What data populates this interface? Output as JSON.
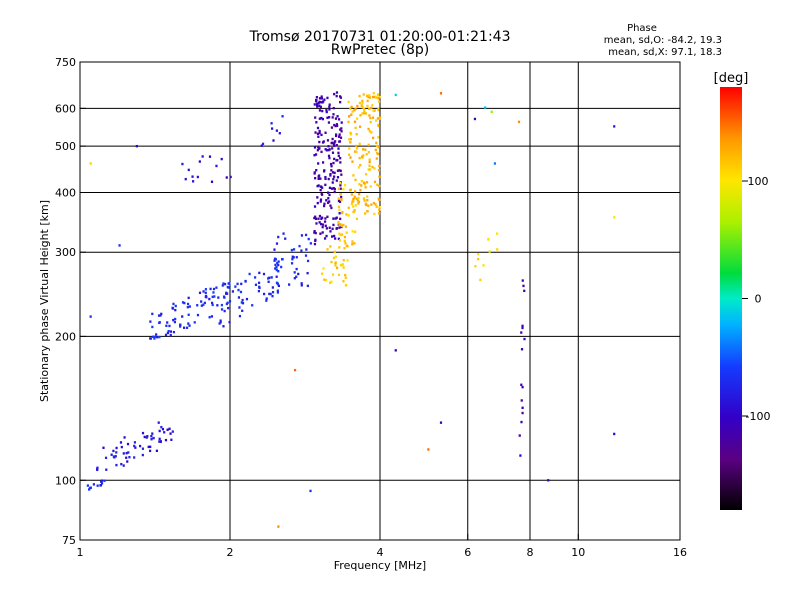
{
  "chart_data": {
    "type": "scatter",
    "title": "Tromsø 20170731 01:20:00-01:21:43",
    "subtitle": "RwPretec (8p)",
    "xlabel": "Frequency [MHz]",
    "ylabel": "Stationary phase Virtual Height [km]",
    "x_scale": "log",
    "y_scale": "log",
    "xlim": [
      1,
      16
    ],
    "ylim": [
      75,
      750
    ],
    "x_ticks": [
      1,
      2,
      4,
      6,
      8,
      10,
      16
    ],
    "x_tick_labels": [
      "1",
      "2",
      "4",
      "6",
      "8",
      "10",
      "16"
    ],
    "y_ticks": [
      75,
      100,
      200,
      300,
      400,
      500,
      600,
      750
    ],
    "y_tick_labels": [
      "75",
      "100",
      "200",
      "300",
      "400",
      "500",
      "600",
      "750"
    ],
    "x_gridlines": [
      2,
      4,
      6,
      8,
      10
    ],
    "y_gridlines": [
      100,
      200,
      300,
      400,
      500,
      600
    ],
    "grid": true,
    "stats": {
      "heading": "Phase",
      "lines": [
        "mean, sd,O:  -84.2, 19.3",
        "mean, sd,X:  97.1, 18.3"
      ]
    },
    "colorbar": {
      "label": "[deg]",
      "range": [
        -180,
        180
      ],
      "ticks": [
        100,
        0,
        -100
      ],
      "tick_labels": [
        "100",
        "0",
        "-100"
      ],
      "colormap": "rainbow"
    },
    "clusters": [
      {
        "x": [
          1.02,
          1.12
        ],
        "y": [
          95,
          100
        ],
        "phase": -70,
        "count": 12
      },
      {
        "x": [
          1.08,
          1.55
        ],
        "y": [
          105,
          132
        ],
        "phase": -85,
        "count": 60
      },
      {
        "x": [
          1.38,
          2.0
        ],
        "y": [
          198,
          258
        ],
        "phase": -70,
        "count": 90
      },
      {
        "x": [
          1.9,
          2.55
        ],
        "y": [
          210,
          290
        ],
        "phase": -72,
        "count": 60
      },
      {
        "x": [
          2.45,
          2.92
        ],
        "y": [
          255,
          330
        ],
        "phase": -70,
        "count": 40
      },
      {
        "x": [
          1.55,
          2.05
        ],
        "y": [
          420,
          480
        ],
        "phase": -95,
        "count": 14
      },
      {
        "x": [
          2.25,
          2.55
        ],
        "y": [
          500,
          580
        ],
        "phase": -80,
        "count": 8
      },
      {
        "x": [
          2.95,
          3.35
        ],
        "y": [
          310,
          650
        ],
        "phase": -115,
        "count": 220
      },
      {
        "x": [
          3.05,
          3.45
        ],
        "y": [
          255,
          310
        ],
        "phase": 110,
        "count": 30
      },
      {
        "x": [
          3.3,
          3.6
        ],
        "y": [
          300,
          420
        ],
        "phase": 115,
        "count": 50
      },
      {
        "x": [
          3.45,
          4.0
        ],
        "y": [
          360,
          650
        ],
        "phase": 120,
        "count": 160
      },
      {
        "x": [
          6.1,
          6.9
        ],
        "y": [
          230,
          350
        ],
        "phase": 100,
        "count": 10
      },
      {
        "x": [
          7.6,
          7.8
        ],
        "y": [
          100,
          290
        ],
        "phase": -110,
        "count": 16
      }
    ],
    "points": [
      {
        "x": 4.3,
        "y": 640,
        "phase": -10
      },
      {
        "x": 5.3,
        "y": 645,
        "phase": 150
      },
      {
        "x": 6.5,
        "y": 602,
        "phase": -20
      },
      {
        "x": 6.7,
        "y": 590,
        "phase": 60
      },
      {
        "x": 6.2,
        "y": 570,
        "phase": -110
      },
      {
        "x": 11.8,
        "y": 550,
        "phase": -80
      },
      {
        "x": 11.8,
        "y": 355,
        "phase": 100
      },
      {
        "x": 7.6,
        "y": 562,
        "phase": 140
      },
      {
        "x": 6.8,
        "y": 460,
        "phase": -40
      },
      {
        "x": 4.3,
        "y": 187,
        "phase": -110
      },
      {
        "x": 5.3,
        "y": 132,
        "phase": -110
      },
      {
        "x": 5.0,
        "y": 116,
        "phase": 150
      },
      {
        "x": 2.7,
        "y": 170,
        "phase": 150
      },
      {
        "x": 11.8,
        "y": 125,
        "phase": -100
      },
      {
        "x": 8.7,
        "y": 100,
        "phase": -110
      },
      {
        "x": 2.9,
        "y": 95,
        "phase": -70
      },
      {
        "x": 2.5,
        "y": 80,
        "phase": 140
      },
      {
        "x": 1.3,
        "y": 500,
        "phase": -100
      },
      {
        "x": 1.05,
        "y": 460,
        "phase": 110
      },
      {
        "x": 1.2,
        "y": 310,
        "phase": -70
      },
      {
        "x": 1.05,
        "y": 220,
        "phase": -70
      }
    ]
  }
}
